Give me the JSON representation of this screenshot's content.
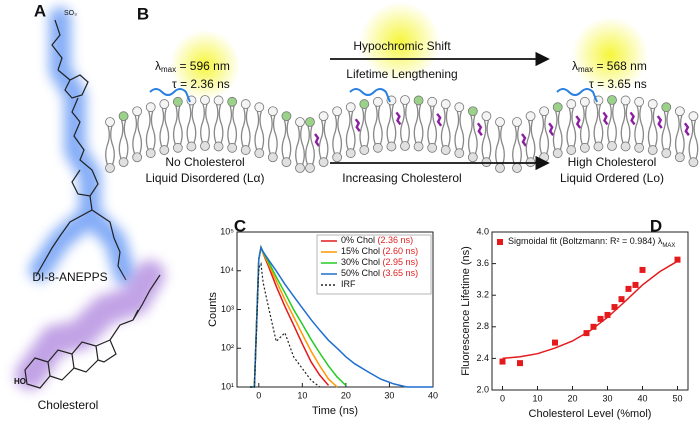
{
  "panel_labels": [
    "A",
    "B",
    "C",
    "D"
  ],
  "molecules": {
    "dye": "DI-8-ANEPPS",
    "sterol": "Cholesterol"
  },
  "scheme": {
    "left": {
      "lambda": "λ",
      "lambda_sub": "max",
      "lambda_value": " = 596 nm",
      "tau": "τ = 2.36 ns",
      "caption": [
        "No Cholesterol",
        "Liquid Disordered (Lα)"
      ]
    },
    "right": {
      "lambda": "λ",
      "lambda_sub": "max",
      "lambda_value": " = 568 nm",
      "tau": "τ = 3.65 ns",
      "caption": [
        "High Cholesterol",
        "Liquid Ordered (Lo)"
      ]
    },
    "arrow_top": [
      "Hypochromic Shift",
      "Lifetime Lengthening"
    ],
    "arrow_bottom": "Increasing Cholesterol"
  },
  "chart_data": [
    {
      "type": "line",
      "xlabel": "Time (ns)",
      "ylabel": "Counts",
      "log_y": true,
      "legend": "upper right",
      "xlim": [
        -5,
        40
      ],
      "xticks": [
        0,
        10,
        20,
        30,
        40
      ],
      "ylim": [
        10,
        100000
      ],
      "yticks": [
        {
          "value": 10,
          "label": "10¹"
        },
        {
          "value": 100,
          "label": "10²"
        },
        {
          "value": 1000,
          "label": "10³"
        },
        {
          "value": 10000,
          "label": "10⁴"
        },
        {
          "value": 100000,
          "label": "10⁵"
        }
      ],
      "x": [
        -2,
        -1,
        0,
        0.5,
        1,
        2,
        4,
        6,
        8,
        10,
        12,
        14,
        16,
        18,
        20,
        22,
        25,
        28,
        31,
        34,
        37,
        40
      ],
      "series": [
        {
          "name": "0% Chol",
          "note": "(2.36 ns)",
          "note_color": "#e02020",
          "color": "#e41a1c",
          "style": "solid",
          "values": [
            10,
            10,
            20000,
            40000,
            28000,
            15000,
            4000,
            1200,
            400,
            130,
            45,
            20,
            11,
            null,
            null,
            null,
            null,
            null,
            null,
            null,
            null,
            null
          ]
        },
        {
          "name": "15% Chol",
          "note": "(2.60 ns)",
          "note_color": "#e02020",
          "color": "#ff9900",
          "style": "solid",
          "values": [
            10,
            10,
            20000,
            40000,
            29000,
            17000,
            5500,
            1800,
            650,
            230,
            85,
            35,
            16,
            10,
            null,
            null,
            null,
            null,
            null,
            null,
            null,
            null
          ]
        },
        {
          "name": "30% Chol",
          "note": "(2.95 ns)",
          "note_color": "#e02020",
          "color": "#22cc22",
          "style": "solid",
          "values": [
            10,
            10,
            20000,
            40000,
            30000,
            19000,
            7000,
            2700,
            1000,
            420,
            170,
            75,
            35,
            18,
            11,
            null,
            null,
            null,
            null,
            null,
            null,
            null
          ]
        },
        {
          "name": "50% Chol",
          "note": "(3.65 ns)",
          "note_color": "#e02020",
          "color": "#1f6fd0",
          "style": "solid",
          "values": [
            10,
            10,
            20000,
            40000,
            31000,
            21000,
            10000,
            4500,
            2200,
            1100,
            550,
            290,
            160,
            100,
            60,
            40,
            25,
            16,
            12,
            10,
            10,
            10
          ]
        },
        {
          "name": "IRF",
          "color": "#222222",
          "style": "dotted",
          "values": [
            10,
            10,
            12000,
            15000,
            5000,
            1500,
            150,
            250,
            60,
            30,
            15,
            10,
            null,
            null,
            null,
            null,
            null,
            null,
            null,
            null,
            null,
            null
          ]
        }
      ]
    },
    {
      "type": "scatter",
      "xlabel": "Cholesterol Level (%mol)",
      "ylabel": "Fluorescence Lifetime (ns)",
      "legend": "upper left",
      "xlim": [
        -3,
        53
      ],
      "xticks": [
        0,
        10,
        20,
        30,
        40,
        50
      ],
      "ylim": [
        2.0,
        4.0
      ],
      "yticks": [
        {
          "value": 2.0,
          "label": "2.0"
        },
        2.4,
        2.8,
        3.2,
        3.6,
        {
          "value": 4.0,
          "label": "4.0"
        }
      ],
      "series": [
        {
          "name": "Sigmoidal fit (Boltzmann: R² = 0.984) λ",
          "name_sub": "MAX",
          "kind": "scatter",
          "color": "#e41a1c",
          "x": [
            0,
            5,
            15,
            24,
            26,
            28,
            30,
            32,
            34,
            36,
            38,
            40,
            50
          ],
          "values": [
            2.36,
            2.34,
            2.6,
            2.72,
            2.8,
            2.9,
            2.95,
            3.05,
            3.15,
            3.28,
            3.33,
            3.52,
            3.65
          ]
        },
        {
          "kind": "line",
          "color": "#e41a1c",
          "x": [
            0,
            5,
            10,
            15,
            20,
            25,
            30,
            35,
            40,
            45,
            50
          ],
          "values": [
            2.4,
            2.42,
            2.46,
            2.53,
            2.62,
            2.75,
            2.92,
            3.12,
            3.33,
            3.5,
            3.63
          ]
        }
      ]
    }
  ]
}
